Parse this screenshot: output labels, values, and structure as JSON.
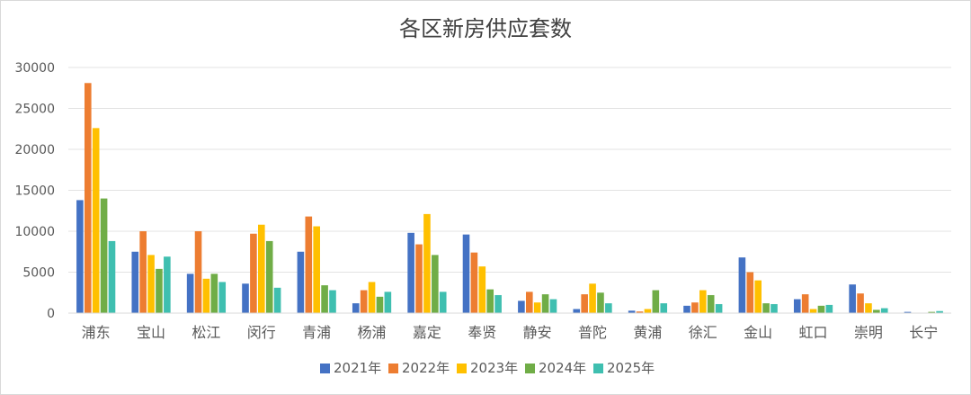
{
  "chart_data": {
    "type": "bar",
    "title": "各区新房供应套数",
    "xlabel": "",
    "ylabel": "",
    "ylim": [
      0,
      30000
    ],
    "yticks": [
      0,
      5000,
      10000,
      15000,
      20000,
      25000,
      30000
    ],
    "grid": true,
    "legend_position": "bottom",
    "categories": [
      "浦东",
      "宝山",
      "松江",
      "闵行",
      "青浦",
      "杨浦",
      "嘉定",
      "奉贤",
      "静安",
      "普陀",
      "黄浦",
      "徐汇",
      "金山",
      "虹口",
      "崇明",
      "长宁"
    ],
    "series": [
      {
        "name": "2021年",
        "color": "#4472c4",
        "values": [
          13800,
          7500,
          4800,
          3600,
          7500,
          1200,
          9800,
          9600,
          1500,
          500,
          300,
          900,
          6800,
          1700,
          3500,
          150
        ]
      },
      {
        "name": "2022年",
        "color": "#ed7d31",
        "values": [
          28100,
          10000,
          10000,
          9700,
          11800,
          2800,
          8400,
          7400,
          2600,
          2300,
          200,
          1300,
          5000,
          2300,
          2400,
          50
        ]
      },
      {
        "name": "2023年",
        "color": "#ffc000",
        "values": [
          22600,
          7100,
          4200,
          10800,
          10600,
          3800,
          12100,
          5700,
          1300,
          3600,
          500,
          2800,
          4000,
          500,
          1200,
          50
        ]
      },
      {
        "name": "2024年",
        "color": "#70ad47",
        "values": [
          14000,
          5400,
          4800,
          8800,
          3400,
          2000,
          7100,
          2900,
          2300,
          2500,
          2800,
          2200,
          1200,
          900,
          400,
          150
        ]
      },
      {
        "name": "2025年",
        "color": "#3fbfb0",
        "values": [
          8800,
          6900,
          3800,
          3100,
          2800,
          2600,
          2600,
          2200,
          1700,
          1200,
          1200,
          1100,
          1100,
          1000,
          600,
          250
        ]
      }
    ]
  }
}
